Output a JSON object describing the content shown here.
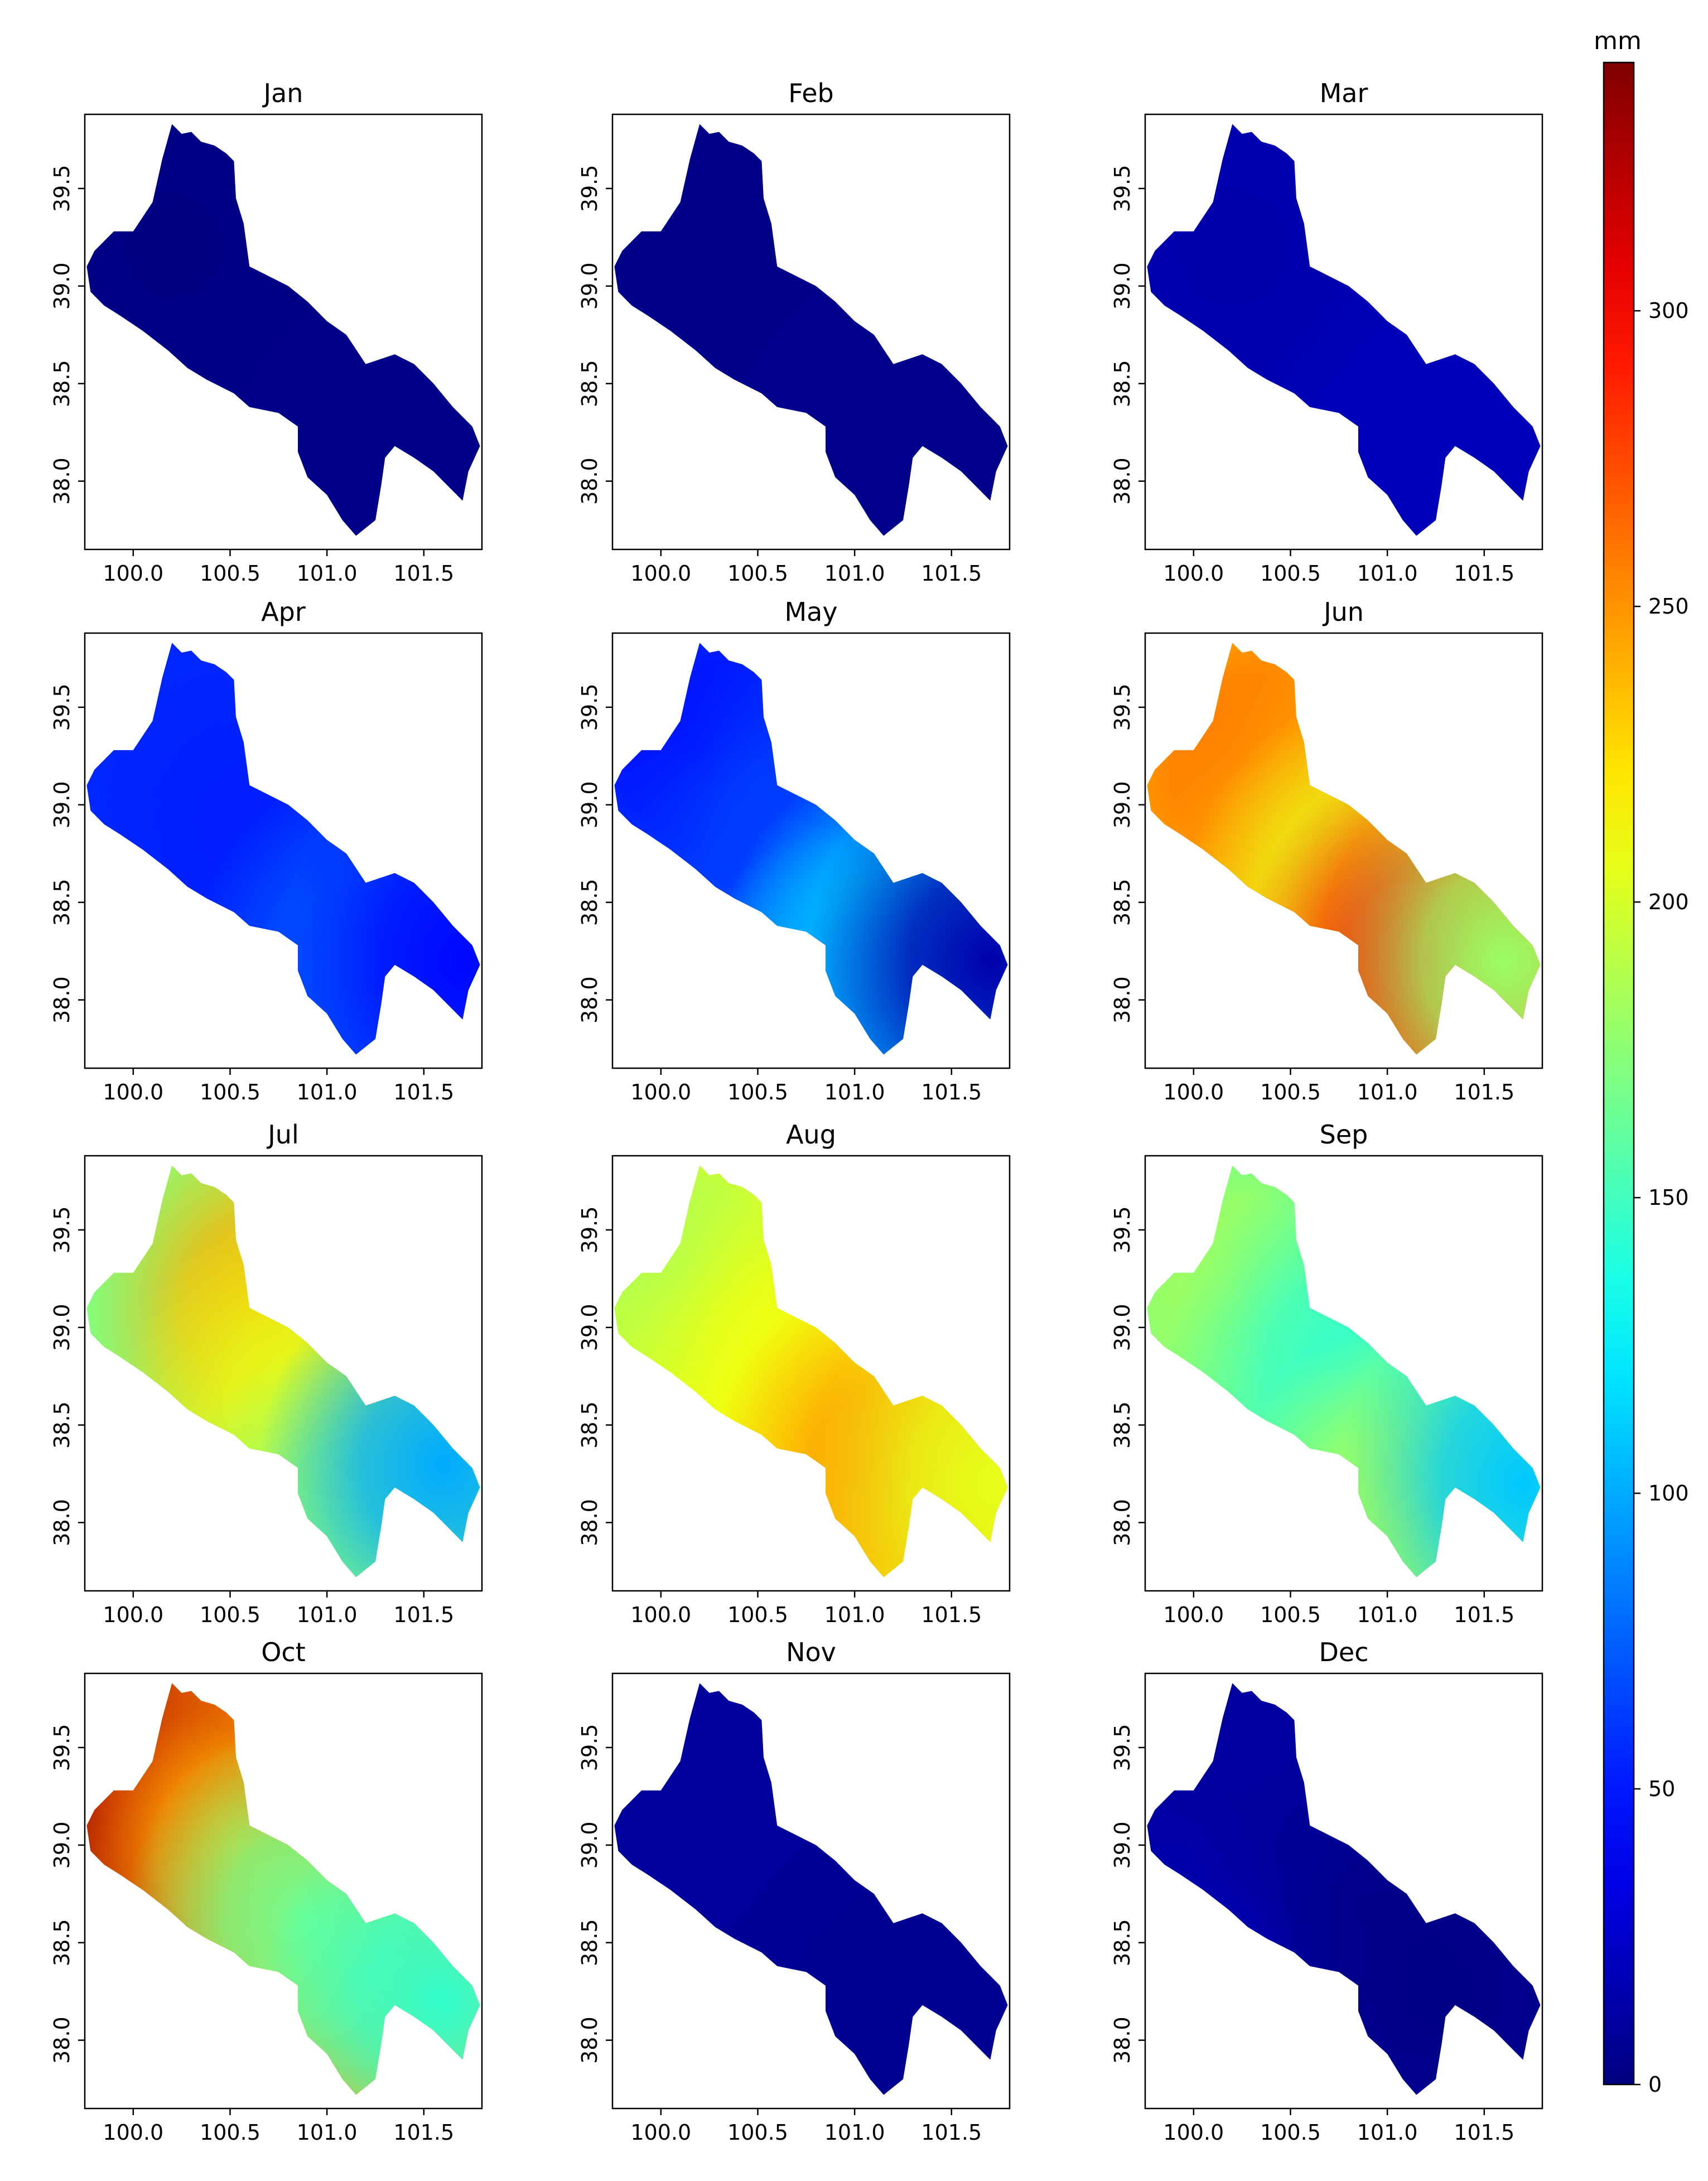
{
  "figure": {
    "colorbar": {
      "unit_label": "mm",
      "ticks": [
        0,
        50,
        100,
        150,
        200,
        250,
        300
      ],
      "range": [
        0,
        342
      ],
      "colormap": "jet",
      "orientation": "vertical",
      "placement": "right"
    }
  },
  "chart_data": {
    "type": "heatmap",
    "layout": "4x3 panel grid of maps",
    "quantity": "monthly precipitation",
    "unit": "mm",
    "x_axis": {
      "ticks": [
        100.0,
        100.5,
        101.0,
        101.5
      ],
      "tick_labels": [
        "100.0",
        "100.5",
        "101.0",
        "101.5"
      ],
      "range": [
        99.75,
        101.8
      ]
    },
    "y_axis": {
      "ticks": [
        38.0,
        38.5,
        39.0,
        39.5
      ],
      "tick_labels": [
        "38.0",
        "38.5",
        "39.0",
        "39.5"
      ],
      "range": [
        37.65,
        39.88
      ]
    },
    "region_outline_lonlat": [
      [
        100.2,
        39.83
      ],
      [
        100.25,
        39.78
      ],
      [
        100.3,
        39.79
      ],
      [
        100.35,
        39.74
      ],
      [
        100.42,
        39.72
      ],
      [
        100.48,
        39.68
      ],
      [
        100.52,
        39.64
      ],
      [
        100.53,
        39.45
      ],
      [
        100.57,
        39.32
      ],
      [
        100.6,
        39.1
      ],
      [
        100.7,
        39.05
      ],
      [
        100.8,
        39.0
      ],
      [
        100.9,
        38.92
      ],
      [
        101.0,
        38.82
      ],
      [
        101.1,
        38.75
      ],
      [
        101.2,
        38.6
      ],
      [
        101.35,
        38.65
      ],
      [
        101.45,
        38.6
      ],
      [
        101.55,
        38.5
      ],
      [
        101.65,
        38.38
      ],
      [
        101.75,
        38.28
      ],
      [
        101.79,
        38.18
      ],
      [
        101.73,
        38.05
      ],
      [
        101.7,
        37.9
      ],
      [
        101.62,
        37.98
      ],
      [
        101.55,
        38.05
      ],
      [
        101.45,
        38.12
      ],
      [
        101.35,
        38.18
      ],
      [
        101.3,
        38.12
      ],
      [
        101.28,
        37.98
      ],
      [
        101.25,
        37.8
      ],
      [
        101.15,
        37.72
      ],
      [
        101.08,
        37.8
      ],
      [
        101.0,
        37.93
      ],
      [
        100.9,
        38.02
      ],
      [
        100.85,
        38.15
      ],
      [
        100.85,
        38.28
      ],
      [
        100.75,
        38.35
      ],
      [
        100.6,
        38.38
      ],
      [
        100.52,
        38.45
      ],
      [
        100.38,
        38.52
      ],
      [
        100.28,
        38.58
      ],
      [
        100.18,
        38.67
      ],
      [
        100.05,
        38.77
      ],
      [
        99.93,
        38.85
      ],
      [
        99.85,
        38.9
      ],
      [
        99.78,
        38.97
      ],
      [
        99.76,
        39.1
      ],
      [
        99.8,
        39.18
      ],
      [
        99.9,
        39.28
      ],
      [
        100.0,
        39.28
      ],
      [
        100.1,
        39.43
      ],
      [
        100.15,
        39.65
      ]
    ],
    "panels": [
      {
        "title": "Jan",
        "field": [
          {
            "lon": 100.2,
            "lat": 39.2,
            "value": 2
          },
          {
            "lon": 101.2,
            "lat": 38.2,
            "value": 3
          }
        ]
      },
      {
        "title": "Feb",
        "field": [
          {
            "lon": 100.2,
            "lat": 39.2,
            "value": 3
          },
          {
            "lon": 101.2,
            "lat": 38.2,
            "value": 4
          }
        ]
      },
      {
        "title": "Mar",
        "field": [
          {
            "lon": 100.2,
            "lat": 39.2,
            "value": 15
          },
          {
            "lon": 101.2,
            "lat": 38.2,
            "value": 20
          }
        ]
      },
      {
        "title": "Apr",
        "field": [
          {
            "lon": 100.0,
            "lat": 39.5,
            "value": 55
          },
          {
            "lon": 100.7,
            "lat": 38.8,
            "value": 52
          },
          {
            "lon": 101.25,
            "lat": 38.2,
            "value": 75
          },
          {
            "lon": 101.7,
            "lat": 38.2,
            "value": 45
          }
        ]
      },
      {
        "title": "May",
        "field": [
          {
            "lon": 100.2,
            "lat": 39.3,
            "value": 45
          },
          {
            "lon": 100.7,
            "lat": 38.8,
            "value": 65
          },
          {
            "lon": 101.25,
            "lat": 38.2,
            "value": 125
          },
          {
            "lon": 101.05,
            "lat": 37.9,
            "value": 100
          },
          {
            "lon": 101.7,
            "lat": 38.2,
            "value": 15
          }
        ]
      },
      {
        "title": "Jun",
        "field": [
          {
            "lon": 100.3,
            "lat": 39.2,
            "value": 260
          },
          {
            "lon": 100.8,
            "lat": 38.75,
            "value": 240
          },
          {
            "lon": 100.9,
            "lat": 38.5,
            "value": 205
          },
          {
            "lon": 101.2,
            "lat": 38.2,
            "value": 300
          },
          {
            "lon": 101.6,
            "lat": 38.2,
            "value": 180
          }
        ]
      },
      {
        "title": "Jul",
        "field": [
          {
            "lon": 100.0,
            "lat": 39.2,
            "value": 170
          },
          {
            "lon": 100.7,
            "lat": 39.1,
            "value": 240
          },
          {
            "lon": 100.9,
            "lat": 38.6,
            "value": 205
          },
          {
            "lon": 101.1,
            "lat": 37.9,
            "value": 175
          },
          {
            "lon": 101.6,
            "lat": 38.3,
            "value": 100
          }
        ]
      },
      {
        "title": "Aug",
        "field": [
          {
            "lon": 100.1,
            "lat": 39.3,
            "value": 185
          },
          {
            "lon": 100.7,
            "lat": 38.8,
            "value": 210
          },
          {
            "lon": 101.2,
            "lat": 38.25,
            "value": 250
          },
          {
            "lon": 101.7,
            "lat": 38.2,
            "value": 205
          }
        ]
      },
      {
        "title": "Sep",
        "field": [
          {
            "lon": 100.2,
            "lat": 39.2,
            "value": 185
          },
          {
            "lon": 100.8,
            "lat": 38.8,
            "value": 145
          },
          {
            "lon": 101.1,
            "lat": 38.0,
            "value": 190
          },
          {
            "lon": 101.7,
            "lat": 38.2,
            "value": 110
          }
        ]
      },
      {
        "title": "Oct",
        "field": [
          {
            "lon": 99.8,
            "lat": 39.15,
            "value": 342
          },
          {
            "lon": 100.3,
            "lat": 39.2,
            "value": 320
          },
          {
            "lon": 100.55,
            "lat": 39.0,
            "value": 240
          },
          {
            "lon": 100.9,
            "lat": 38.6,
            "value": 165
          },
          {
            "lon": 101.6,
            "lat": 38.2,
            "value": 145
          }
        ]
      },
      {
        "title": "Nov",
        "field": [
          {
            "lon": 100.2,
            "lat": 39.2,
            "value": 10
          },
          {
            "lon": 101.2,
            "lat": 38.2,
            "value": 6
          }
        ]
      },
      {
        "title": "Dec",
        "field": [
          {
            "lon": 100.25,
            "lat": 38.65,
            "value": 35
          },
          {
            "lon": 100.1,
            "lat": 39.3,
            "value": 10
          },
          {
            "lon": 100.9,
            "lat": 38.7,
            "value": 4
          },
          {
            "lon": 101.3,
            "lat": 38.2,
            "value": 2
          }
        ]
      }
    ]
  }
}
